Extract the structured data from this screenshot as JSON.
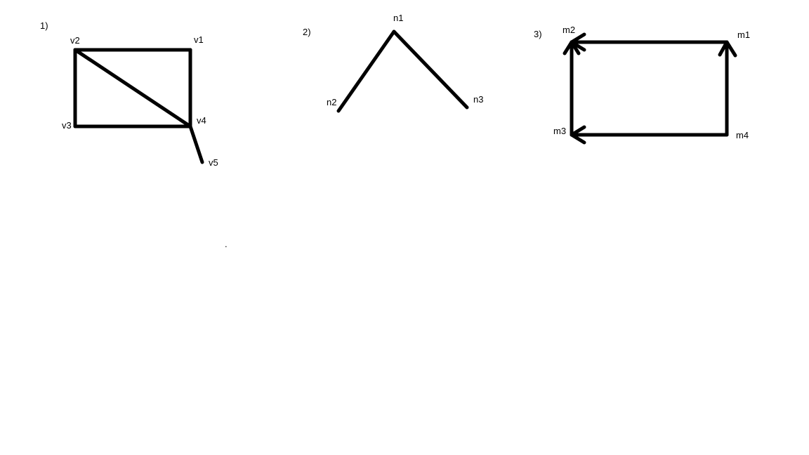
{
  "diagrams": [
    {
      "number": "1)",
      "nodes": [
        "v1",
        "v2",
        "v3",
        "v4",
        "v5"
      ],
      "edges": [
        [
          "v2",
          "v1"
        ],
        [
          "v1",
          "v4"
        ],
        [
          "v2",
          "v3"
        ],
        [
          "v3",
          "v4"
        ],
        [
          "v2",
          "v4"
        ],
        [
          "v4",
          "v5"
        ]
      ],
      "directed": false
    },
    {
      "number": "2)",
      "nodes": [
        "n1",
        "n2",
        "n3"
      ],
      "edges": [
        [
          "n1",
          "n2"
        ],
        [
          "n1",
          "n3"
        ]
      ],
      "directed": false
    },
    {
      "number": "3)",
      "nodes": [
        "m1",
        "m2",
        "m3",
        "m4"
      ],
      "edges": [
        [
          "m1",
          "m2"
        ],
        [
          "m3",
          "m2"
        ],
        [
          "m4",
          "m1"
        ],
        [
          "m4",
          "m3"
        ]
      ],
      "directed": true
    }
  ],
  "stray_mark": "."
}
